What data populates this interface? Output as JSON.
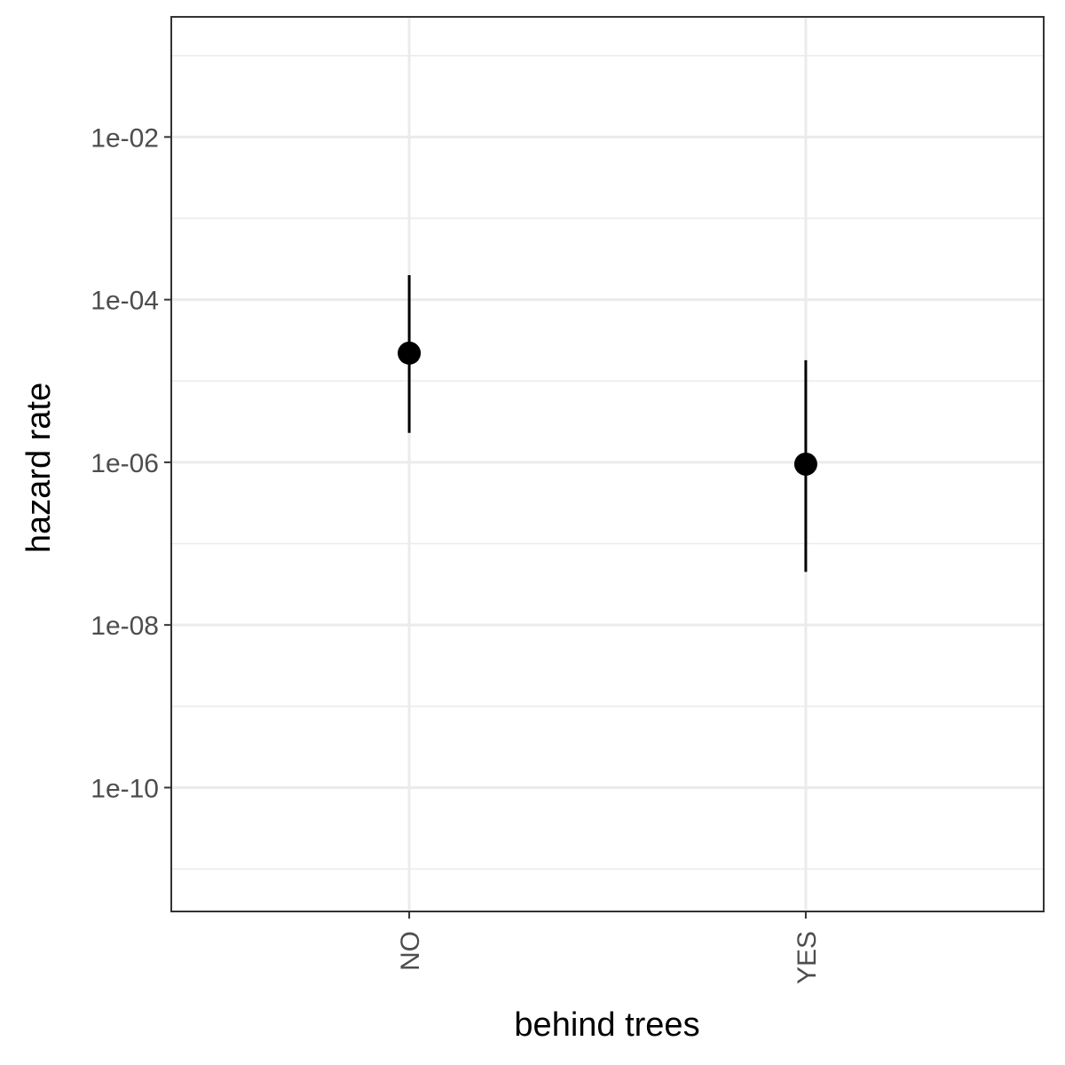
{
  "chart_data": {
    "type": "scatter",
    "xlabel": "behind trees",
    "ylabel": "hazard rate",
    "categories": [
      "NO",
      "YES"
    ],
    "points": [
      {
        "category": "NO",
        "y": 2.2e-05,
        "ymin": 2.3e-06,
        "ymax": 0.0002
      },
      {
        "category": "YES",
        "y": 9.5e-07,
        "ymin": 4.5e-08,
        "ymax": 1.8e-05
      }
    ],
    "y_scale": "log10",
    "ylim": [
      3e-12,
      0.3
    ],
    "y_ticks": [
      1e-10,
      1e-08,
      1e-06,
      0.0001,
      0.01
    ],
    "y_tick_labels": [
      "1e-10",
      "1e-08",
      "1e-06",
      "1e-04",
      "1e-02"
    ],
    "grid": true,
    "legend": "none",
    "colors": {
      "point": "#000000",
      "grid": "#ebebeb",
      "panel_border": "#333333",
      "tick_text": "#4d4d4d"
    }
  }
}
